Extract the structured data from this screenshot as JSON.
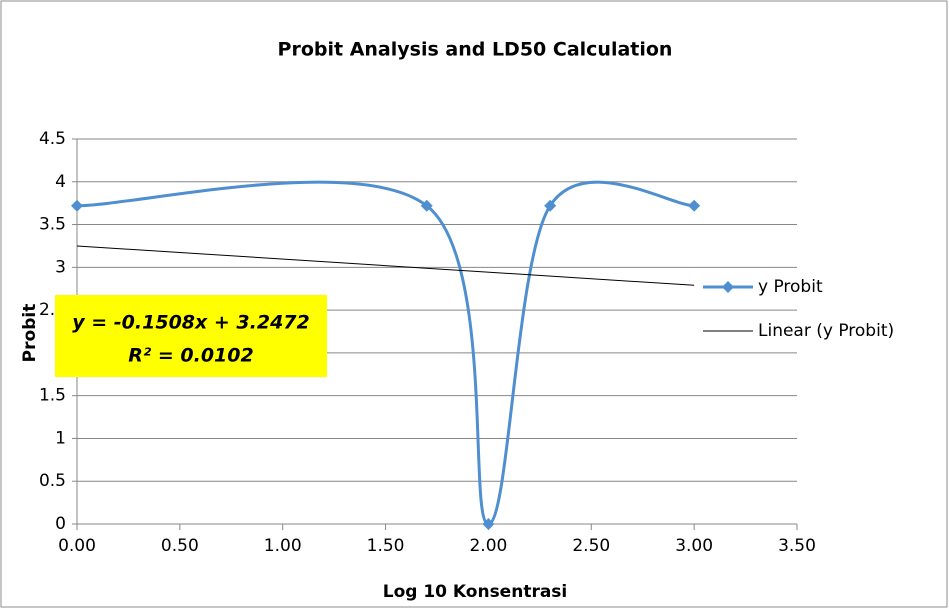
{
  "chart_data": {
    "type": "line",
    "title": "Probit Analysis and LD50 Calculation",
    "x_label": "Log 10 Konsentrasi",
    "y_label": "Probit",
    "x": [
      0,
      1.7,
      2,
      2.3,
      3
    ],
    "series": [
      {
        "name": "y Probit",
        "color": "#4f8fd0",
        "values": [
          3.72,
          3.72,
          0,
          3.72,
          3.72
        ],
        "smooth": true,
        "marker": "diamond"
      },
      {
        "name": "Linear (y Probit)",
        "color": "#000000",
        "x": [
          0,
          3
        ],
        "values": [
          3.25,
          2.79
        ]
      }
    ],
    "trendline_label": [
      "y = -0.1508x + 3.2472",
      "R² = 0.0102"
    ],
    "xlim": [
      0,
      3.5
    ],
    "ylim": [
      0,
      4.5
    ],
    "xticks": [
      {
        "value": 0,
        "label": "0.00"
      },
      {
        "value": 0.5,
        "label": "0.50"
      },
      {
        "value": 1,
        "label": "1.00"
      },
      {
        "value": 1.5,
        "label": "1.50"
      },
      {
        "value": 2,
        "label": "2.00"
      },
      {
        "value": 2.5,
        "label": "2.50"
      },
      {
        "value": 3,
        "label": "3.00"
      },
      {
        "value": 3.5,
        "label": "3.50"
      }
    ],
    "yticks": [
      0,
      0.5,
      1,
      1.5,
      2,
      2.5,
      3,
      3.5,
      4,
      4.5
    ],
    "grid": true,
    "legend": "right"
  }
}
